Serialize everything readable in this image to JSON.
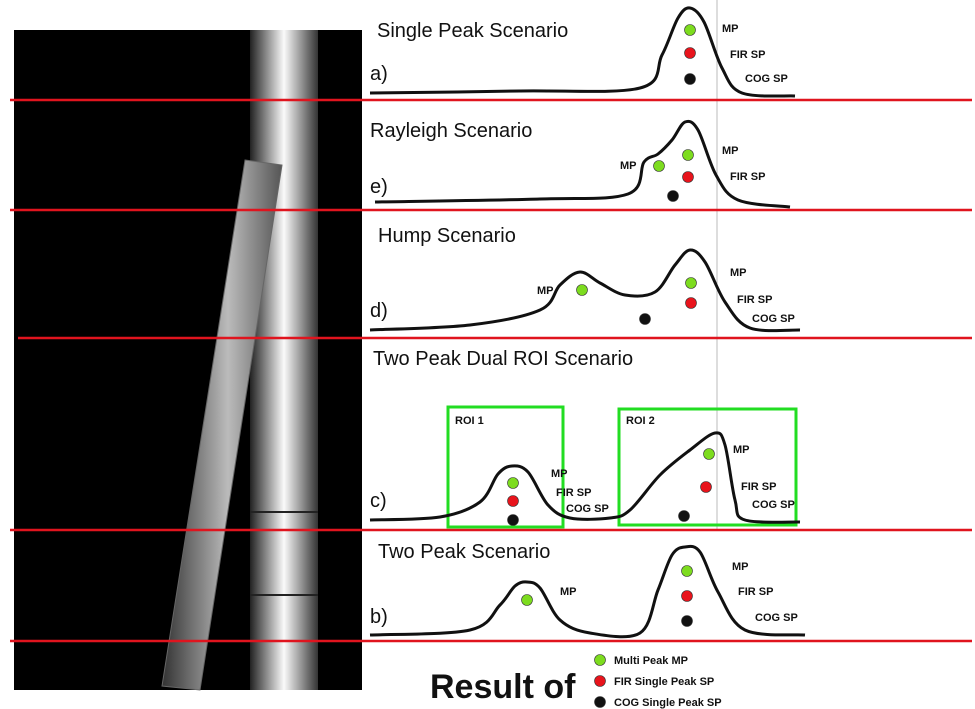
{
  "panels": [
    {
      "title": "Single Peak Scenario",
      "letter": "a)",
      "labels": [
        "MP",
        "FIR SP",
        "COG SP"
      ]
    },
    {
      "title": "Rayleigh Scenario",
      "letter": "e)",
      "labels": [
        "MP",
        "MP",
        "FIR SP"
      ]
    },
    {
      "title": "Hump Scenario",
      "letter": "d)",
      "labels": [
        "MP",
        "MP",
        "FIR SP",
        "COG SP"
      ]
    },
    {
      "title": "Two Peak Dual ROI Scenario",
      "letter": "c)",
      "labels": [
        "MP",
        "FIR SP",
        "COG SP",
        "MP",
        "FIR SP",
        "COG SP"
      ]
    },
    {
      "title": "Two Peak Scenario",
      "letter": "b)",
      "labels": [
        "MP",
        "MP",
        "FIR SP",
        "COG SP"
      ]
    }
  ],
  "rois": [
    "ROI 1",
    "ROI 2"
  ],
  "legend": {
    "title": "Result of",
    "items": [
      "Multi Peak MP",
      "FIR Single Peak SP",
      "COG Single Peak SP"
    ]
  }
}
